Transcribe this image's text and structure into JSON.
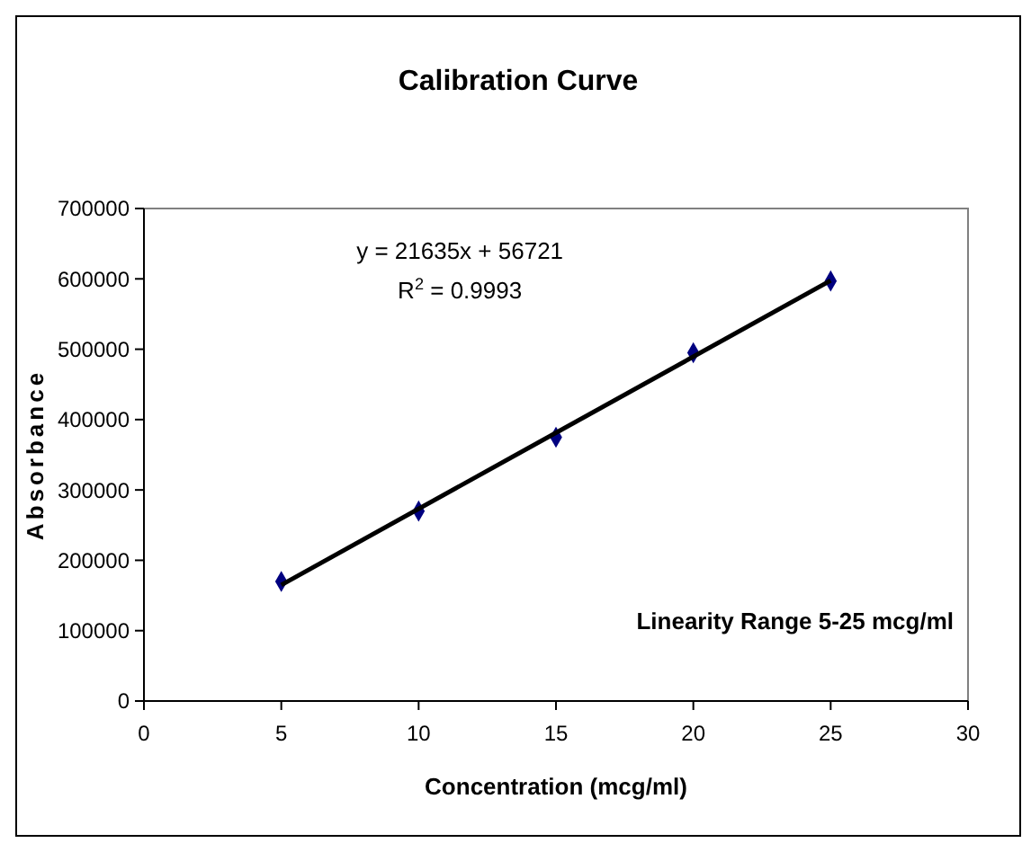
{
  "chart_data": {
    "type": "scatter",
    "title": "Calibration Curve",
    "xlabel": "Concentration (mcg/ml)",
    "ylabel": "Absorbance",
    "series": [
      {
        "color": "#000080",
        "marker": "diamond",
        "x": [
          5,
          10,
          15,
          20,
          25
        ],
        "values": [
          170000,
          270000,
          375000,
          495000,
          597000
        ]
      },
      {
        "type": "line",
        "color": "#000000",
        "marker": "none",
        "line_style": "solid",
        "x": [
          5,
          25
        ],
        "values": [
          165000,
          597600
        ]
      }
    ],
    "xlim": [
      0,
      30
    ],
    "xticks": [
      0,
      5,
      10,
      15,
      20,
      25,
      30
    ],
    "ylim": [
      0,
      700000
    ],
    "yticks": [
      0,
      100000,
      200000,
      300000,
      400000,
      500000,
      600000,
      700000
    ],
    "grid": false,
    "annotations": [
      "y = 21635x + 56721",
      "R$^{2}$ = 0.9993",
      "Linearity Range 5-25 mcg/ml"
    ]
  }
}
